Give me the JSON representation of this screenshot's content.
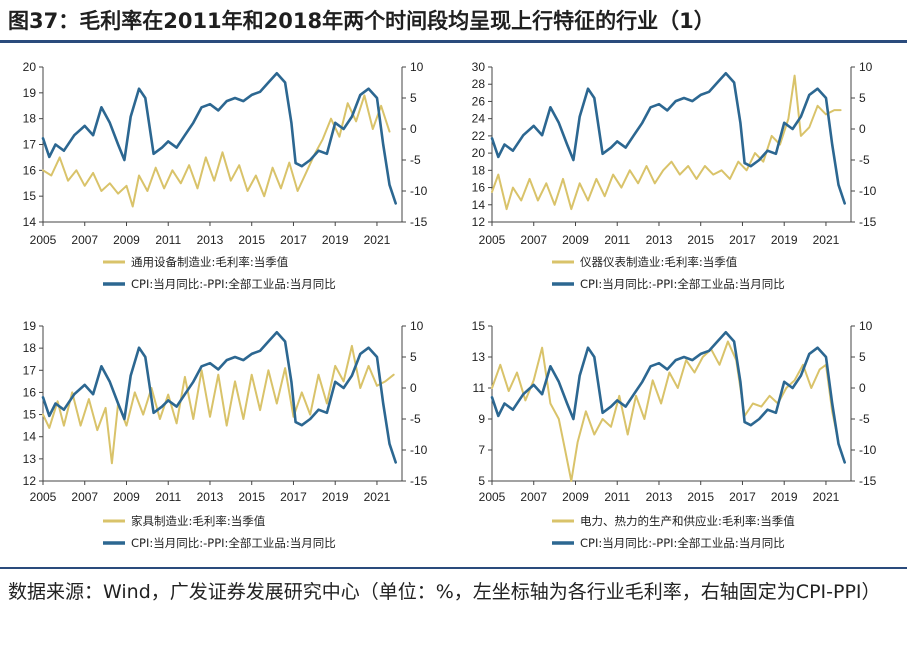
{
  "title": "图37：毛利率在2011年和2018年两个时间段均呈现上行特征的行业（1）",
  "source": "数据来源：Wind，广发证券发展研究中心（单位：%，左坐标轴为各行业毛利率，右轴固定为CPI-PPI）",
  "colors": {
    "industry": "#d9c36a",
    "cpi_ppi": "#2c6791"
  },
  "chart_data": [
    {
      "type": "line",
      "xticks": [
        "2005",
        "2007",
        "2009",
        "2011",
        "2013",
        "2015",
        "2017",
        "2019",
        "2021"
      ],
      "xlim": [
        2005,
        2022.2
      ],
      "ylim_left": [
        14,
        20
      ],
      "yticks_left": [
        "14",
        "15",
        "16",
        "17",
        "18",
        "19",
        "20"
      ],
      "ylim_right": [
        -15,
        10
      ],
      "yticks_right": [
        "-15",
        "-10",
        "-5",
        "0",
        "5",
        "10"
      ],
      "series": [
        {
          "name": "通用设备制造业:毛利率:当季值",
          "axis": "left",
          "color": "#d9c36a",
          "x": [
            2005,
            2005.4,
            2005.8,
            2006.2,
            2006.6,
            2007,
            2007.4,
            2007.8,
            2008.2,
            2008.6,
            2009,
            2009.3,
            2009.6,
            2010,
            2010.4,
            2010.8,
            2011.2,
            2011.6,
            2012,
            2012.4,
            2012.8,
            2013.2,
            2013.6,
            2014,
            2014.4,
            2014.8,
            2015.2,
            2015.6,
            2016,
            2016.4,
            2016.8,
            2017.2,
            2017.6,
            2018,
            2018.4,
            2018.8,
            2019.2,
            2019.6,
            2020,
            2020.4,
            2020.8,
            2021.2,
            2021.6
          ],
          "values": [
            16.0,
            15.8,
            16.5,
            15.6,
            16.0,
            15.4,
            15.9,
            15.2,
            15.5,
            15.1,
            15.4,
            14.6,
            15.8,
            15.2,
            16.1,
            15.3,
            16.0,
            15.5,
            16.2,
            15.3,
            16.5,
            15.6,
            16.7,
            15.6,
            16.2,
            15.2,
            15.8,
            15.0,
            16.1,
            15.3,
            16.3,
            15.2,
            15.9,
            16.6,
            17.2,
            18.0,
            17.3,
            18.6,
            17.9,
            18.9,
            17.6,
            18.5,
            17.5
          ]
        },
        {
          "name": "CPI:当月同比:-PPI:全部工业品:当月同比",
          "axis": "right",
          "color": "#2c6791",
          "x": [
            2005,
            2005.3,
            2005.6,
            2006,
            2006.5,
            2007,
            2007.4,
            2007.8,
            2008.2,
            2008.6,
            2008.9,
            2009.2,
            2009.6,
            2009.9,
            2010.3,
            2010.7,
            2011,
            2011.4,
            2011.8,
            2012.2,
            2012.6,
            2013,
            2013.4,
            2013.8,
            2014.2,
            2014.6,
            2015,
            2015.4,
            2015.8,
            2016.2,
            2016.6,
            2016.9,
            2017.1,
            2017.4,
            2017.8,
            2018.2,
            2018.6,
            2019,
            2019.4,
            2019.8,
            2020.2,
            2020.6,
            2021,
            2021.3,
            2021.6,
            2021.9
          ],
          "values": [
            -1.5,
            -4.5,
            -2.5,
            -3.5,
            -1.0,
            0.5,
            -1.0,
            3.5,
            1.0,
            -2.5,
            -5.0,
            2.0,
            6.5,
            5.0,
            -4.0,
            -3.0,
            -2.0,
            -3.0,
            -1.0,
            1.0,
            3.5,
            4.0,
            3.0,
            4.5,
            5.0,
            4.5,
            5.5,
            6.0,
            7.5,
            9.0,
            7.5,
            1.0,
            -5.5,
            -6.0,
            -5.0,
            -3.5,
            -4.0,
            1.0,
            0.0,
            2.0,
            5.5,
            6.5,
            5.0,
            -2.5,
            -9.0,
            -12.0
          ]
        }
      ]
    },
    {
      "type": "line",
      "xticks": [
        "2005",
        "2007",
        "2009",
        "2011",
        "2013",
        "2015",
        "2017",
        "2019",
        "2021"
      ],
      "xlim": [
        2005,
        2022.2
      ],
      "ylim_left": [
        12,
        30
      ],
      "yticks_left": [
        "12",
        "14",
        "16",
        "18",
        "20",
        "22",
        "24",
        "26",
        "28",
        "30"
      ],
      "ylim_right": [
        -15,
        10
      ],
      "yticks_right": [
        "-15",
        "-10",
        "-5",
        "0",
        "5",
        "10"
      ],
      "series": [
        {
          "name": "仪器仪表制造业:毛利率:当季值",
          "axis": "left",
          "color": "#d9c36a",
          "x": [
            2005,
            2005.3,
            2005.7,
            2006,
            2006.4,
            2006.8,
            2007.2,
            2007.6,
            2008,
            2008.4,
            2008.8,
            2009.2,
            2009.6,
            2010,
            2010.4,
            2010.8,
            2011.2,
            2011.6,
            2012,
            2012.4,
            2012.8,
            2013.2,
            2013.6,
            2014,
            2014.4,
            2014.8,
            2015.2,
            2015.6,
            2016,
            2016.4,
            2016.8,
            2017.2,
            2017.6,
            2018,
            2018.4,
            2018.8,
            2019.2,
            2019.5,
            2019.8,
            2020.2,
            2020.6,
            2021,
            2021.4,
            2021.7
          ],
          "values": [
            15.5,
            17.5,
            13.5,
            16.0,
            14.5,
            17.0,
            14.5,
            16.5,
            14.0,
            17.0,
            13.5,
            16.5,
            14.5,
            17.0,
            15.0,
            17.5,
            16.0,
            18.0,
            16.5,
            18.5,
            16.5,
            18.0,
            19.0,
            17.5,
            18.5,
            17.0,
            18.5,
            17.5,
            18.0,
            17.0,
            19.0,
            18.0,
            20.0,
            19.0,
            22.0,
            21.0,
            24.0,
            29.0,
            22.0,
            23.0,
            25.5,
            24.5,
            25.0,
            25.0
          ]
        },
        {
          "name": "CPI:当月同比:-PPI:全部工业品:当月同比",
          "axis": "right",
          "color": "#2c6791",
          "x": [
            2005,
            2005.3,
            2005.6,
            2006,
            2006.5,
            2007,
            2007.4,
            2007.8,
            2008.2,
            2008.6,
            2008.9,
            2009.2,
            2009.6,
            2009.9,
            2010.3,
            2010.7,
            2011,
            2011.4,
            2011.8,
            2012.2,
            2012.6,
            2013,
            2013.4,
            2013.8,
            2014.2,
            2014.6,
            2015,
            2015.4,
            2015.8,
            2016.2,
            2016.6,
            2016.9,
            2017.1,
            2017.4,
            2017.8,
            2018.2,
            2018.6,
            2019,
            2019.4,
            2019.8,
            2020.2,
            2020.6,
            2021,
            2021.3,
            2021.6,
            2021.9
          ],
          "values": [
            -1.5,
            -4.5,
            -2.5,
            -3.5,
            -1.0,
            0.5,
            -1.0,
            3.5,
            1.0,
            -2.5,
            -5.0,
            2.0,
            6.5,
            5.0,
            -4.0,
            -3.0,
            -2.0,
            -3.0,
            -1.0,
            1.0,
            3.5,
            4.0,
            3.0,
            4.5,
            5.0,
            4.5,
            5.5,
            6.0,
            7.5,
            9.0,
            7.5,
            1.0,
            -5.5,
            -6.0,
            -5.0,
            -3.5,
            -4.0,
            1.0,
            0.0,
            2.0,
            5.5,
            6.5,
            5.0,
            -2.5,
            -9.0,
            -12.0
          ]
        }
      ]
    },
    {
      "type": "line",
      "xticks": [
        "2005",
        "2007",
        "2009",
        "2011",
        "2013",
        "2015",
        "2017",
        "2019",
        "2021"
      ],
      "xlim": [
        2005,
        2022.2
      ],
      "ylim_left": [
        12,
        19
      ],
      "yticks_left": [
        "12",
        "13",
        "14",
        "15",
        "16",
        "17",
        "18",
        "19"
      ],
      "ylim_right": [
        -15,
        10
      ],
      "yticks_right": [
        "-15",
        "-10",
        "-5",
        "0",
        "5",
        "10"
      ],
      "series": [
        {
          "name": "家具制造业:毛利率:当季值",
          "axis": "left",
          "color": "#d9c36a",
          "x": [
            2005,
            2005.3,
            2005.7,
            2006,
            2006.4,
            2006.8,
            2007.2,
            2007.6,
            2008,
            2008.3,
            2008.6,
            2009,
            2009.4,
            2009.8,
            2010.2,
            2010.6,
            2011,
            2011.4,
            2011.8,
            2012.2,
            2012.6,
            2013,
            2013.4,
            2013.8,
            2014.2,
            2014.6,
            2015,
            2015.4,
            2015.8,
            2016.2,
            2016.6,
            2017,
            2017.4,
            2017.8,
            2018.2,
            2018.6,
            2019,
            2019.4,
            2019.8,
            2020.2,
            2020.6,
            2021,
            2021.4,
            2021.8
          ],
          "values": [
            15.0,
            14.4,
            15.6,
            14.5,
            16.0,
            14.5,
            15.7,
            14.3,
            15.3,
            12.8,
            15.5,
            14.5,
            16.0,
            15.0,
            16.2,
            14.8,
            15.9,
            14.6,
            16.7,
            14.8,
            17.0,
            14.9,
            16.8,
            14.5,
            16.5,
            14.8,
            16.8,
            15.2,
            17.0,
            15.5,
            17.1,
            14.9,
            16.0,
            15.0,
            16.8,
            15.5,
            17.2,
            16.5,
            18.1,
            16.2,
            17.2,
            16.3,
            16.5,
            16.8
          ]
        },
        {
          "name": "CPI:当月同比:-PPI:全部工业品:当月同比",
          "axis": "right",
          "color": "#2c6791",
          "x": [
            2005,
            2005.3,
            2005.6,
            2006,
            2006.5,
            2007,
            2007.4,
            2007.8,
            2008.2,
            2008.6,
            2008.9,
            2009.2,
            2009.6,
            2009.9,
            2010.3,
            2010.7,
            2011,
            2011.4,
            2011.8,
            2012.2,
            2012.6,
            2013,
            2013.4,
            2013.8,
            2014.2,
            2014.6,
            2015,
            2015.4,
            2015.8,
            2016.2,
            2016.6,
            2016.9,
            2017.1,
            2017.4,
            2017.8,
            2018.2,
            2018.6,
            2019,
            2019.4,
            2019.8,
            2020.2,
            2020.6,
            2021,
            2021.3,
            2021.6,
            2021.9
          ],
          "values": [
            -1.5,
            -4.5,
            -2.5,
            -3.5,
            -1.0,
            0.5,
            -1.0,
            3.5,
            1.0,
            -2.5,
            -5.0,
            2.0,
            6.5,
            5.0,
            -4.0,
            -3.0,
            -2.0,
            -3.0,
            -1.0,
            1.0,
            3.5,
            4.0,
            3.0,
            4.5,
            5.0,
            4.5,
            5.5,
            6.0,
            7.5,
            9.0,
            7.5,
            1.0,
            -5.5,
            -6.0,
            -5.0,
            -3.5,
            -4.0,
            1.0,
            0.0,
            2.0,
            5.5,
            6.5,
            5.0,
            -2.5,
            -9.0,
            -12.0
          ]
        }
      ]
    },
    {
      "type": "line",
      "xticks": [
        "2005",
        "2007",
        "2009",
        "2011",
        "2013",
        "2015",
        "2017",
        "2019",
        "2021"
      ],
      "xlim": [
        2005,
        2022.2
      ],
      "ylim_left": [
        5,
        15
      ],
      "yticks_left": [
        "5",
        "7",
        "9",
        "11",
        "13",
        "15"
      ],
      "ylim_right": [
        -15,
        10
      ],
      "yticks_right": [
        "-15",
        "-10",
        "-5",
        "0",
        "5",
        "10"
      ],
      "series": [
        {
          "name": "电力、热力的生产和供应业:毛利率:当季值",
          "axis": "left",
          "color": "#d9c36a",
          "x": [
            2005,
            2005.4,
            2005.8,
            2006.2,
            2006.6,
            2007,
            2007.4,
            2007.8,
            2008.2,
            2008.5,
            2008.8,
            2009.1,
            2009.5,
            2009.9,
            2010.3,
            2010.7,
            2011.1,
            2011.5,
            2011.9,
            2012.3,
            2012.7,
            2013.1,
            2013.5,
            2013.9,
            2014.3,
            2014.7,
            2015.1,
            2015.5,
            2015.9,
            2016.3,
            2016.7,
            2017.1,
            2017.5,
            2017.9,
            2018.3,
            2018.7,
            2019.1,
            2019.5,
            2019.9,
            2020.3,
            2020.7,
            2021,
            2021.3,
            2021.6
          ],
          "values": [
            11.0,
            12.5,
            10.8,
            12.0,
            10.2,
            11.5,
            13.6,
            10.0,
            9.0,
            7.0,
            5.0,
            7.5,
            9.5,
            8.0,
            9.0,
            8.5,
            10.5,
            8.0,
            10.5,
            9.0,
            11.5,
            10.0,
            12.0,
            11.0,
            12.8,
            12.0,
            13.0,
            13.5,
            12.5,
            14.0,
            12.8,
            9.2,
            10.0,
            9.8,
            10.5,
            10.0,
            11.0,
            11.5,
            12.5,
            11.0,
            12.2,
            12.5,
            9.5,
            7.5
          ]
        },
        {
          "name": "CPI:当月同比:-PPI:全部工业品:当月同比",
          "axis": "right",
          "color": "#2c6791",
          "x": [
            2005,
            2005.3,
            2005.6,
            2006,
            2006.5,
            2007,
            2007.4,
            2007.8,
            2008.2,
            2008.6,
            2008.9,
            2009.2,
            2009.6,
            2009.9,
            2010.3,
            2010.7,
            2011,
            2011.4,
            2011.8,
            2012.2,
            2012.6,
            2013,
            2013.4,
            2013.8,
            2014.2,
            2014.6,
            2015,
            2015.4,
            2015.8,
            2016.2,
            2016.6,
            2016.9,
            2017.1,
            2017.4,
            2017.8,
            2018.2,
            2018.6,
            2019,
            2019.4,
            2019.8,
            2020.2,
            2020.6,
            2021,
            2021.3,
            2021.6,
            2021.9
          ],
          "values": [
            -1.5,
            -4.5,
            -2.5,
            -3.5,
            -1.0,
            0.5,
            -1.0,
            3.5,
            1.0,
            -2.5,
            -5.0,
            2.0,
            6.5,
            5.0,
            -4.0,
            -3.0,
            -2.0,
            -3.0,
            -1.0,
            1.0,
            3.5,
            4.0,
            3.0,
            4.5,
            5.0,
            4.5,
            5.5,
            6.0,
            7.5,
            9.0,
            7.5,
            1.0,
            -5.5,
            -6.0,
            -5.0,
            -3.5,
            -4.0,
            1.0,
            0.0,
            2.0,
            5.5,
            6.5,
            5.0,
            -2.5,
            -9.0,
            -12.0
          ]
        }
      ]
    }
  ]
}
